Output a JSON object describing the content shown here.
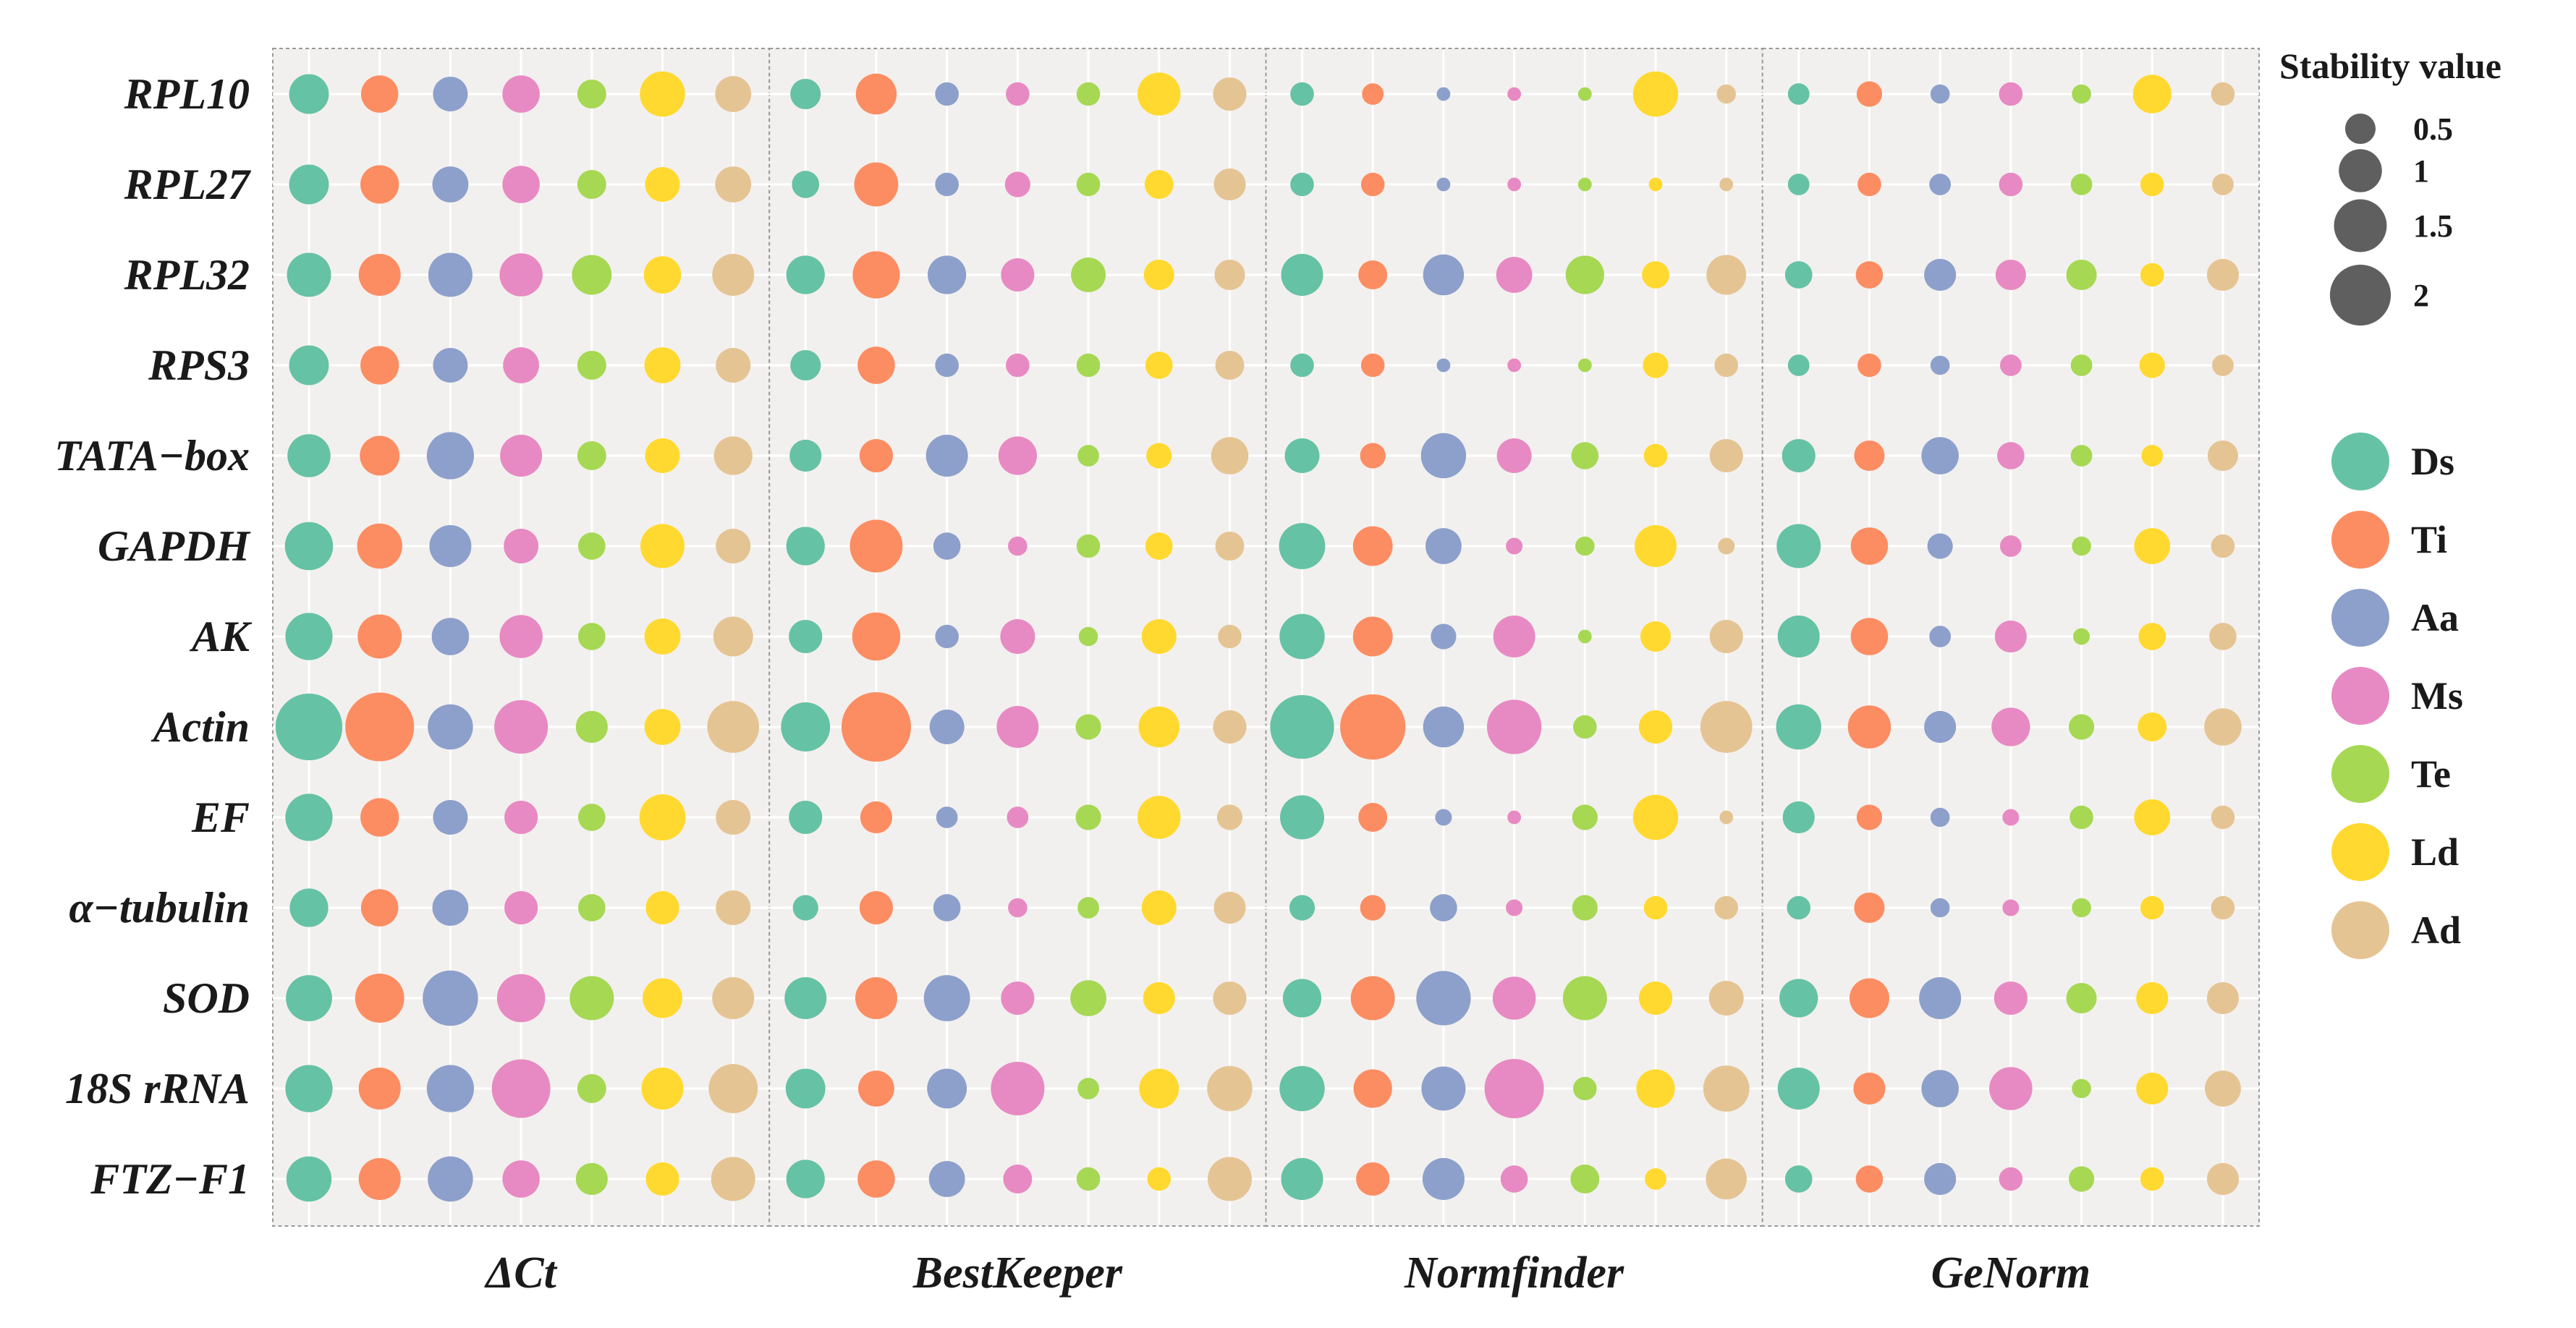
{
  "chart_data": {
    "type": "scatter",
    "genes": [
      "RPL10",
      "RPL27",
      "RPL32",
      "RPS3",
      "TATA−box",
      "GAPDH",
      "AK",
      "Actin",
      "EF",
      "α−tubulin",
      "SOD",
      "18S rRNA",
      "FTZ−F1"
    ],
    "species": [
      "Ds",
      "Ti",
      "Aa",
      "Ms",
      "Te",
      "Ld",
      "Ad"
    ],
    "colors": {
      "Ds": "#66c2a5",
      "Ti": "#fc8d62",
      "Aa": "#8da0cb",
      "Ms": "#e78ac3",
      "Te": "#a6d854",
      "Ld": "#ffd92f",
      "Ad": "#e5c494"
    },
    "panel_background": "#f2f0ee",
    "size_legend": {
      "title": "Stability value",
      "values": [
        0.5,
        1,
        1.5,
        2
      ],
      "labels": [
        "0.5",
        "1",
        "1.5",
        "2"
      ],
      "color": "#5f5f5f"
    },
    "methods": [
      {
        "name": "ΔCt",
        "values": [
          [
            0.85,
            0.75,
            0.65,
            0.75,
            0.45,
            1.1,
            0.7
          ],
          [
            0.85,
            0.8,
            0.7,
            0.75,
            0.45,
            0.65,
            0.7
          ],
          [
            1.05,
            0.95,
            1.05,
            1.0,
            0.85,
            0.75,
            0.95
          ],
          [
            0.85,
            0.8,
            0.65,
            0.7,
            0.45,
            0.7,
            0.65
          ],
          [
            1.0,
            0.85,
            1.2,
            0.95,
            0.45,
            0.65,
            0.8
          ],
          [
            1.25,
            1.1,
            0.95,
            0.65,
            0.4,
            1.05,
            0.65
          ],
          [
            1.2,
            1.05,
            0.75,
            1.0,
            0.4,
            0.7,
            0.85
          ],
          [
            2.4,
            2.55,
            1.1,
            1.55,
            0.55,
            0.7,
            1.45
          ],
          [
            1.2,
            0.8,
            0.65,
            0.6,
            0.4,
            1.15,
            0.65
          ],
          [
            0.8,
            0.75,
            0.7,
            0.6,
            0.4,
            0.6,
            0.65
          ],
          [
            1.15,
            1.3,
            1.65,
            1.25,
            1.05,
            0.85,
            0.95
          ],
          [
            1.2,
            0.95,
            1.2,
            1.85,
            0.45,
            0.95,
            1.3
          ],
          [
            1.1,
            0.95,
            1.1,
            0.75,
            0.55,
            0.6,
            1.05
          ]
        ]
      },
      {
        "name": "BestKeeper",
        "values": [
          [
            0.5,
            0.9,
            0.3,
            0.3,
            0.3,
            1.0,
            0.6
          ],
          [
            0.4,
            1.05,
            0.3,
            0.35,
            0.3,
            0.45,
            0.55
          ],
          [
            0.8,
            1.2,
            0.8,
            0.6,
            0.65,
            0.5,
            0.5
          ],
          [
            0.5,
            0.75,
            0.3,
            0.3,
            0.3,
            0.4,
            0.45
          ],
          [
            0.55,
            0.6,
            0.95,
            0.8,
            0.25,
            0.35,
            0.75
          ],
          [
            0.8,
            1.5,
            0.4,
            0.2,
            0.3,
            0.4,
            0.45
          ],
          [
            0.6,
            1.25,
            0.3,
            0.65,
            0.2,
            0.65,
            0.3
          ],
          [
            1.3,
            2.6,
            0.65,
            0.95,
            0.35,
            0.9,
            0.6
          ],
          [
            0.6,
            0.55,
            0.25,
            0.25,
            0.35,
            1.0,
            0.35
          ],
          [
            0.35,
            0.6,
            0.4,
            0.2,
            0.25,
            0.65,
            0.55
          ],
          [
            0.95,
            0.95,
            1.15,
            0.6,
            0.7,
            0.55,
            0.6
          ],
          [
            0.85,
            0.7,
            0.85,
            1.55,
            0.25,
            0.85,
            1.1
          ],
          [
            0.8,
            0.75,
            0.7,
            0.45,
            0.3,
            0.3,
            1.05
          ]
        ]
      },
      {
        "name": "Normfinder",
        "values": [
          [
            0.3,
            0.25,
            0.1,
            0.1,
            0.1,
            1.1,
            0.2
          ],
          [
            0.3,
            0.3,
            0.1,
            0.1,
            0.1,
            0.1,
            0.1
          ],
          [
            0.95,
            0.45,
            0.9,
            0.7,
            0.8,
            0.4,
            0.85
          ],
          [
            0.3,
            0.3,
            0.1,
            0.1,
            0.1,
            0.35,
            0.3
          ],
          [
            0.65,
            0.35,
            1.1,
            0.65,
            0.4,
            0.3,
            0.6
          ],
          [
            1.15,
            0.85,
            0.7,
            0.15,
            0.2,
            0.95,
            0.15
          ],
          [
            1.1,
            0.85,
            0.35,
            0.95,
            0.1,
            0.5,
            0.6
          ],
          [
            2.2,
            2.3,
            0.9,
            1.6,
            0.3,
            0.6,
            1.45
          ],
          [
            1.05,
            0.45,
            0.15,
            0.1,
            0.35,
            1.1,
            0.1
          ],
          [
            0.35,
            0.35,
            0.4,
            0.15,
            0.35,
            0.3,
            0.3
          ],
          [
            0.8,
            1.05,
            1.6,
            1.0,
            1.05,
            0.6,
            0.65
          ],
          [
            1.1,
            0.8,
            1.05,
            1.9,
            0.3,
            0.8,
            1.15
          ],
          [
            0.95,
            0.6,
            0.95,
            0.4,
            0.45,
            0.25,
            0.9
          ]
        ]
      },
      {
        "name": "GeNorm",
        "values": [
          [
            0.25,
            0.35,
            0.2,
            0.3,
            0.2,
            0.8,
            0.3
          ],
          [
            0.25,
            0.3,
            0.25,
            0.3,
            0.25,
            0.3,
            0.25
          ],
          [
            0.4,
            0.4,
            0.55,
            0.5,
            0.5,
            0.3,
            0.55
          ],
          [
            0.25,
            0.3,
            0.2,
            0.25,
            0.25,
            0.35,
            0.25
          ],
          [
            0.6,
            0.5,
            0.75,
            0.4,
            0.25,
            0.25,
            0.5
          ],
          [
            1.05,
            0.75,
            0.35,
            0.25,
            0.2,
            0.7,
            0.3
          ],
          [
            0.95,
            0.75,
            0.25,
            0.55,
            0.15,
            0.4,
            0.4
          ],
          [
            1.1,
            1.0,
            0.55,
            0.8,
            0.35,
            0.45,
            0.75
          ],
          [
            0.55,
            0.35,
            0.2,
            0.15,
            0.3,
            0.7,
            0.3
          ],
          [
            0.3,
            0.5,
            0.2,
            0.15,
            0.2,
            0.3,
            0.3
          ],
          [
            0.8,
            0.85,
            0.95,
            0.6,
            0.5,
            0.55,
            0.55
          ],
          [
            0.95,
            0.55,
            0.75,
            1.0,
            0.2,
            0.55,
            0.7
          ],
          [
            0.4,
            0.4,
            0.55,
            0.3,
            0.35,
            0.3,
            0.55
          ]
        ]
      }
    ]
  }
}
